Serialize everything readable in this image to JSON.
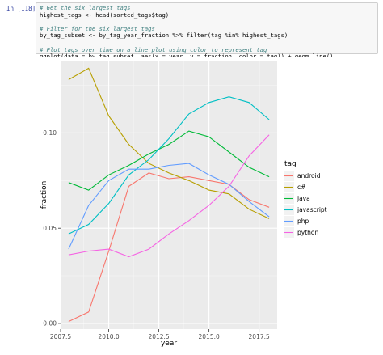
{
  "notebook": {
    "prompt": "In [118]:",
    "code_lines": [
      {
        "type": "comment",
        "text": "# Get the six largest tags"
      },
      {
        "type": "code",
        "text": "highest_tags <- head(sorted_tags$tag)"
      },
      {
        "type": "blank",
        "text": ""
      },
      {
        "type": "comment",
        "text": "# Filter for the six largest tags"
      },
      {
        "type": "code",
        "text": "by_tag_subset <- by_tag_year_fraction %>% filter(tag %in% highest_tags)"
      },
      {
        "type": "blank",
        "text": ""
      },
      {
        "type": "comment",
        "text": "# Plot tags over time on a line plot using color to represent tag"
      },
      {
        "type": "code",
        "text": "ggplot(data = by_tag_subset, aes(x = year, y = fraction, color = tag)) + geom_line()"
      }
    ]
  },
  "chart_data": {
    "type": "line",
    "title": "",
    "xlabel": "year",
    "ylabel": "fraction",
    "xlim": [
      2007.6,
      2018.4
    ],
    "ylim": [
      -0.003,
      0.138
    ],
    "x_ticks": [
      2007.5,
      2010.0,
      2012.5,
      2015.0,
      2017.5
    ],
    "x_tick_labels": [
      "2007.5",
      "2010.0",
      "2012.5",
      "2015.0",
      "2017.5"
    ],
    "y_ticks": [
      0.0,
      0.05,
      0.1
    ],
    "y_tick_labels": [
      "0.00",
      "0.05",
      "0.10"
    ],
    "x": [
      2008,
      2009,
      2010,
      2011,
      2012,
      2013,
      2014,
      2015,
      2016,
      2017,
      2018
    ],
    "legend_title": "tag",
    "legend_position": "right",
    "grid": true,
    "series": [
      {
        "name": "android",
        "color": "#F8766D",
        "values": [
          0.001,
          0.006,
          0.038,
          0.072,
          0.079,
          0.076,
          0.077,
          0.075,
          0.073,
          0.065,
          0.061
        ]
      },
      {
        "name": "c#",
        "color": "#B79F00",
        "values": [
          0.128,
          0.134,
          0.109,
          0.094,
          0.084,
          0.079,
          0.075,
          0.07,
          0.068,
          0.06,
          0.055
        ]
      },
      {
        "name": "java",
        "color": "#00BA38",
        "values": [
          0.074,
          0.07,
          0.078,
          0.083,
          0.089,
          0.094,
          0.101,
          0.098,
          0.09,
          0.082,
          0.077
        ]
      },
      {
        "name": "javascript",
        "color": "#00BFC4",
        "values": [
          0.047,
          0.052,
          0.063,
          0.078,
          0.086,
          0.097,
          0.11,
          0.116,
          0.119,
          0.116,
          0.107
        ]
      },
      {
        "name": "php",
        "color": "#619CFF",
        "values": [
          0.039,
          0.062,
          0.075,
          0.081,
          0.081,
          0.083,
          0.084,
          0.078,
          0.073,
          0.064,
          0.056
        ]
      },
      {
        "name": "python",
        "color": "#F564E3",
        "values": [
          0.036,
          0.038,
          0.039,
          0.035,
          0.039,
          0.047,
          0.054,
          0.062,
          0.072,
          0.088,
          0.099
        ]
      }
    ]
  }
}
